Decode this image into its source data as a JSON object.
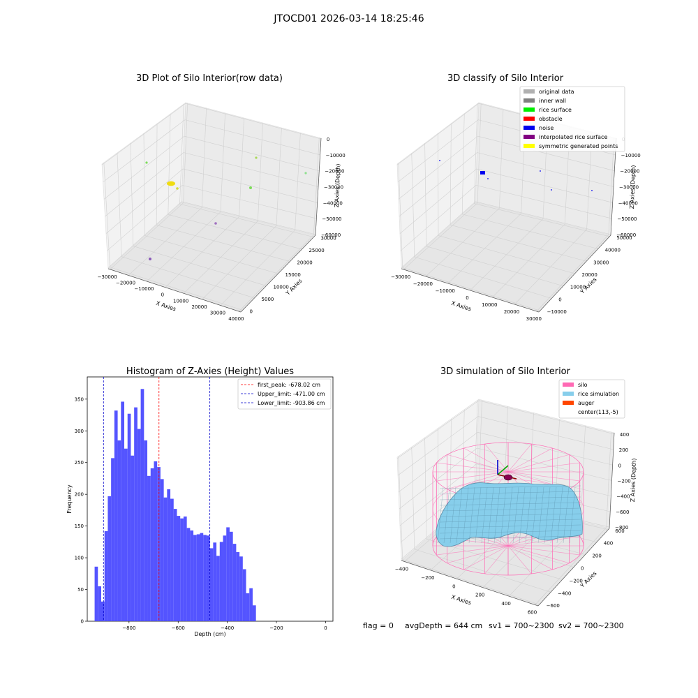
{
  "suptitle": "JTOCD01 2026-03-14 18:25:46",
  "colors": {
    "gray_data": "#b0b0b0",
    "inner_wall": "#808080",
    "rice_surface": "#00ee00",
    "obstacle": "#ff0000",
    "noise": "#0000ee",
    "interpolated": "#800080",
    "symmetric": "#ffff00",
    "silo": "#ff69b4",
    "rice_sim": "#87ceeb",
    "auger": "#ff4500",
    "hist_bar": "#4b4bff"
  },
  "raw_plot": {
    "title": "3D Plot of Silo Interior(row data)",
    "xlabel": "X Axies",
    "ylabel": "Y Axies",
    "zlabel": "Z Axies (Depth)",
    "xticks": [
      "−30000",
      "−20000",
      "−10000",
      "0",
      "10000",
      "20000",
      "30000",
      "40000"
    ],
    "yticks": [
      "0",
      "5000",
      "10000",
      "15000",
      "20000",
      "25000",
      "30000"
    ],
    "zticks": [
      "0",
      "−10000",
      "−20000",
      "−30000",
      "−40000",
      "−50000",
      "−60000"
    ]
  },
  "classify_plot": {
    "title": "3D classify of Silo Interior",
    "xlabel": "X Axies",
    "ylabel": "Y Axies",
    "zlabel": "Z Axies (Depth)",
    "xticks": [
      "−30000",
      "−20000",
      "−10000",
      "0",
      "10000",
      "20000",
      "30000"
    ],
    "yticks": [
      "−10000",
      "0",
      "10000",
      "20000",
      "30000",
      "40000",
      "50000"
    ],
    "zticks": [
      "0",
      "−10000",
      "−20000",
      "−30000",
      "−40000",
      "−50000",
      "−60000"
    ],
    "legend": [
      {
        "label": "original data",
        "color": "#b0b0b0"
      },
      {
        "label": "inner wall",
        "color": "#808080"
      },
      {
        "label": "rice surface",
        "color": "#00ee00"
      },
      {
        "label": "obstacle",
        "color": "#ff0000"
      },
      {
        "label": "noise",
        "color": "#0000ee"
      },
      {
        "label": "interpolated rice surface",
        "color": "#800080"
      },
      {
        "label": "symmetric generated points",
        "color": "#ffff00"
      }
    ]
  },
  "chart_data": [
    {
      "type": "histogram",
      "title": "Histogram of Z-Axies (Height) Values",
      "xlabel": "Depth (cm)",
      "ylabel": "Frequency",
      "xlim": [
        -970,
        30
      ],
      "ylim": [
        0,
        385
      ],
      "xticks": [
        -800,
        -600,
        -400,
        -200,
        0
      ],
      "xtick_labels": [
        "−800",
        "−600",
        "−400",
        "−200",
        "0"
      ],
      "yticks": [
        0,
        50,
        100,
        150,
        200,
        250,
        300,
        350
      ],
      "yticks_labels": [
        "0",
        "50",
        "100",
        "150",
        "200",
        "250",
        "300",
        "350"
      ],
      "bin_start": -940,
      "bin_width": 13.4,
      "counts": [
        86,
        55,
        31,
        142,
        197,
        257,
        332,
        285,
        346,
        272,
        327,
        261,
        337,
        303,
        366,
        285,
        229,
        241,
        252,
        243,
        224,
        195,
        208,
        193,
        177,
        166,
        162,
        165,
        147,
        143,
        136,
        137,
        139,
        136,
        135,
        115,
        124,
        103,
        125,
        135,
        148,
        141,
        122,
        109,
        102,
        82,
        44,
        52,
        25
      ],
      "vlines": [
        {
          "x": -678.02,
          "color": "#ff0000",
          "label": "first_peak: -678.02 cm"
        },
        {
          "x": -471.0,
          "color": "#0000cc",
          "label": "Upper_limit: -471.00 cm"
        },
        {
          "x": -903.86,
          "color": "#0000cc",
          "label": "Lower_limit: -903.86 cm"
        }
      ]
    }
  ],
  "sim_plot": {
    "title": "3D simulation of Silo Interior",
    "xlabel": "X Axies",
    "ylabel": "Y Axies",
    "zlabel": "Z Axies (Depth)",
    "xticks": [
      "−400",
      "−200",
      "0",
      "200",
      "400",
      "600"
    ],
    "yticks": [
      "−600",
      "−400",
      "−200",
      "0",
      "200",
      "400",
      "600"
    ],
    "zticks": [
      "400",
      "200",
      "0",
      "−200",
      "−400",
      "−600",
      "−800"
    ],
    "legend": [
      {
        "label": "silo",
        "color": "#ff69b4"
      },
      {
        "label": "rice simulation",
        "color": "#87ceeb"
      },
      {
        "label": "auger",
        "color": "#ff4500"
      },
      {
        "label": "center(113,-5)",
        "color": ""
      }
    ]
  },
  "footer": {
    "flag": "flag = 0",
    "avg": "avgDepth = 644 cm",
    "sv1": "sv1 = 700~2300",
    "sv2": "sv2 = 700~2300"
  }
}
